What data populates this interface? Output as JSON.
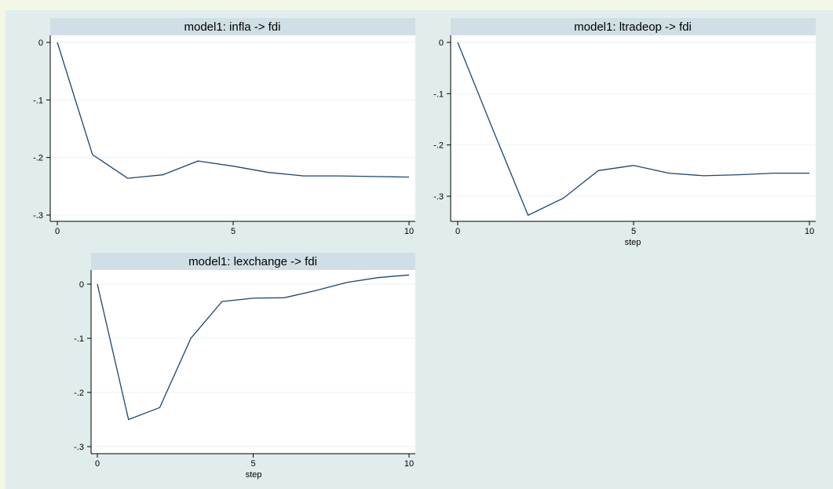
{
  "colors": {
    "page_background": "#f3f8e6",
    "graph_region": "#e1ecec",
    "plot_background": "#ffffff",
    "title_band": "#d0dfe5",
    "gridline": "#eaf2f3",
    "series_line": "#1a476f"
  },
  "chart_data": [
    {
      "type": "line",
      "title": "model1: infla -> fdi",
      "xlabel": "",
      "ylabel": "",
      "x": [
        0,
        1,
        2,
        3,
        4,
        5,
        6,
        7,
        8,
        9,
        10
      ],
      "series": [
        {
          "values": [
            0,
            -0.195,
            -0.236,
            -0.23,
            -0.206,
            -0.215,
            -0.226,
            -0.232,
            -0.232,
            -0.233,
            -0.234
          ]
        }
      ],
      "xlim": [
        0,
        10
      ],
      "ylim": [
        -0.3,
        0
      ],
      "xticks": [
        0,
        5,
        10
      ],
      "xtick_labels": [
        "0",
        "5",
        "10"
      ],
      "yticks": [
        0,
        -0.1,
        -0.2,
        -0.3
      ],
      "ytick_labels": [
        "0",
        "-.1",
        "-.2",
        "-.3"
      ],
      "grid": true
    },
    {
      "type": "line",
      "title": "model1: ltradeop -> fdi",
      "xlabel": "step",
      "ylabel": "",
      "x": [
        0,
        1,
        2,
        3,
        4,
        5,
        6,
        7,
        8,
        9,
        10
      ],
      "series": [
        {
          "values": [
            0,
            -0.17,
            -0.337,
            -0.304,
            -0.25,
            -0.24,
            -0.255,
            -0.26,
            -0.258,
            -0.255,
            -0.255
          ]
        }
      ],
      "xlim": [
        0,
        10
      ],
      "ylim": [
        -0.3,
        0
      ],
      "xticks": [
        0,
        5,
        10
      ],
      "xtick_labels": [
        "0",
        "5",
        "10"
      ],
      "yticks": [
        0,
        -0.1,
        -0.2,
        -0.3
      ],
      "ytick_labels": [
        "0",
        "-.1",
        "-.2",
        "-.3"
      ],
      "grid": true
    },
    {
      "type": "line",
      "title": "model1: lexchange -> fdi",
      "xlabel": "step",
      "ylabel": "",
      "x": [
        0,
        1,
        2,
        3,
        4,
        5,
        6,
        7,
        8,
        9,
        10
      ],
      "series": [
        {
          "values": [
            0,
            -0.25,
            -0.228,
            -0.1,
            -0.032,
            -0.026,
            -0.025,
            -0.012,
            0.003,
            0.012,
            0.017
          ]
        }
      ],
      "xlim": [
        0,
        10
      ],
      "ylim": [
        -0.3,
        0
      ],
      "xticks": [
        0,
        5,
        10
      ],
      "xtick_labels": [
        "0",
        "5",
        "10"
      ],
      "yticks": [
        0,
        -0.1,
        -0.2,
        -0.3
      ],
      "ytick_labels": [
        "0",
        "-.1",
        "-.2",
        "-.3"
      ],
      "grid": true
    }
  ]
}
